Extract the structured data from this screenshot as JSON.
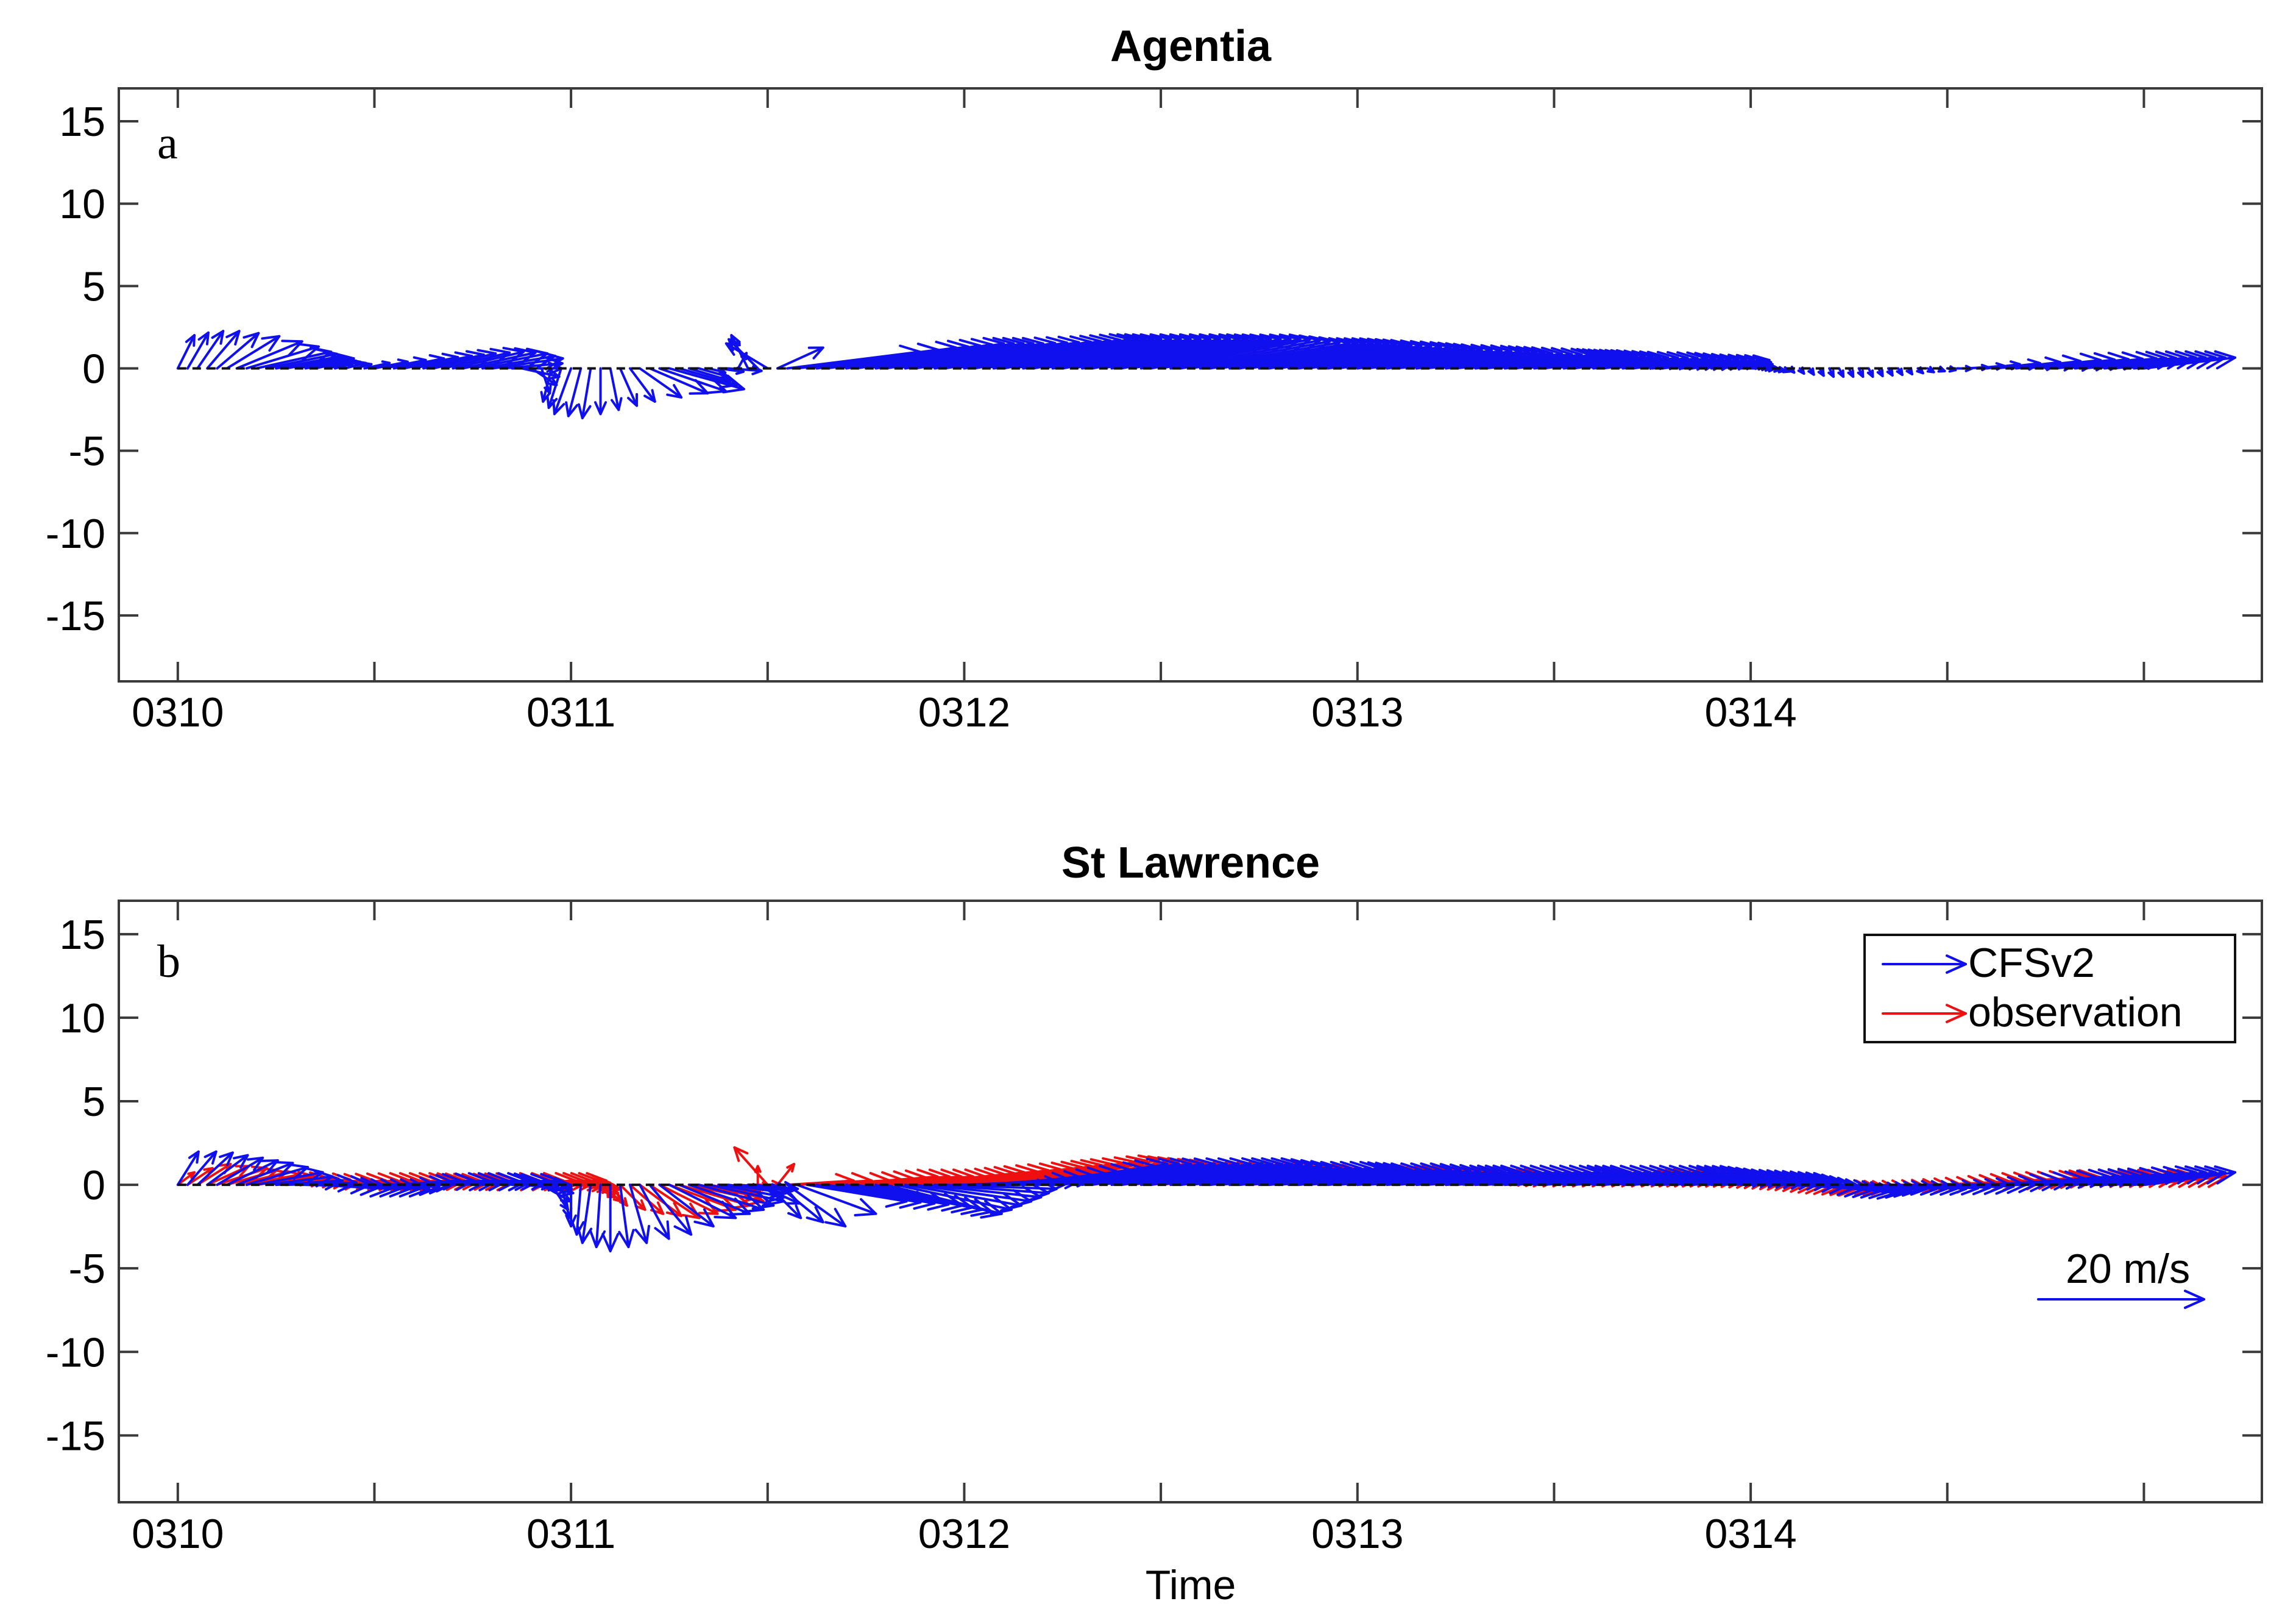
{
  "chart_data": [
    {
      "type": "quiver",
      "panel_label": "a",
      "title": "Agentia",
      "xlabel": "",
      "ylabel": "",
      "xlim": [
        -0.15,
        5.3
      ],
      "ylim": [
        -19,
        17
      ],
      "xticks": [
        0,
        0.5,
        1,
        1.5,
        2,
        2.5,
        3,
        3.5,
        4,
        4.5,
        5
      ],
      "xtick_labels": [
        "0310",
        "",
        "0311",
        "",
        "0312",
        "",
        "0313",
        "",
        "0314",
        "",
        ""
      ],
      "yticks": [
        15,
        10,
        5,
        0,
        -5,
        -10,
        -15
      ],
      "ytick_labels": [
        "15",
        "10",
        "5",
        "0",
        "-5",
        "-10",
        "-15"
      ],
      "arrow_scale": "20 m/s",
      "series": [
        {
          "name": "CFSv2",
          "color": "#1010ee",
          "keyframes": {
            "t": [
              0,
              0.04,
              0.08,
              0.12,
              0.16,
              0.2,
              0.25,
              0.3,
              0.35,
              0.4,
              0.45,
              0.5,
              0.55,
              0.6,
              0.65,
              0.7,
              0.75,
              0.8,
              0.85,
              0.9,
              0.95,
              1.0,
              1.05,
              1.1,
              1.15,
              1.2,
              1.25,
              1.3,
              1.35,
              1.4,
              1.45,
              1.5,
              1.55,
              1.6,
              1.7,
              1.8,
              1.9,
              2.0,
              2.1,
              2.2,
              2.3,
              2.4,
              2.5,
              2.6,
              2.7,
              2.8,
              2.9,
              3.0,
              3.1,
              3.2,
              3.3,
              3.4,
              3.5,
              3.6,
              3.7,
              3.8,
              3.9,
              4.0,
              4.1,
              4.2,
              4.3,
              4.4,
              4.5,
              4.6,
              4.7,
              4.8,
              4.9,
              5.0
            ],
            "u": [
              2.0,
              2.8,
              4.0,
              6.0,
              8.5,
              9.0,
              8.0,
              7.0,
              4.5,
              3.0,
              2.0,
              4.0,
              6.0,
              7.0,
              7.5,
              8.5,
              9.0,
              8.5,
              6.0,
              3.0,
              -1.0,
              -2.0,
              -1.0,
              1.0,
              3.0,
              7.0,
              9.0,
              5.0,
              2.0,
              4.0,
              -2.0,
              -5.0,
              16.0,
              18.0,
              19.0,
              19.0,
              20.0,
              20.0,
              19.0,
              19.0,
              19.0,
              18.0,
              18.0,
              18.0,
              17.0,
              16.0,
              16.0,
              15.0,
              15.0,
              14.0,
              14.0,
              12.0,
              10.0,
              9.0,
              9.0,
              8.0,
              7.0,
              3.0,
              0.5,
              0.5,
              0.5,
              0.5,
              1.0,
              4.0,
              9.0,
              11.0,
              11.0,
              11.0
            ],
            "v": [
              4.0,
              4.5,
              4.5,
              4.0,
              3.0,
              2.0,
              1.5,
              1.2,
              1.0,
              0.8,
              0.5,
              0.8,
              1.2,
              1.5,
              1.8,
              2.0,
              1.8,
              1.2,
              0.0,
              -2.0,
              -4.0,
              -5.5,
              -6.0,
              -5.0,
              -4.0,
              -3.0,
              -2.5,
              -1.5,
              -0.5,
              -0.3,
              4.0,
              3.0,
              2.0,
              2.5,
              3.0,
              3.0,
              3.2,
              3.5,
              3.5,
              3.5,
              3.5,
              3.5,
              3.5,
              3.0,
              3.0,
              2.8,
              2.5,
              2.2,
              2.0,
              1.8,
              1.6,
              1.5,
              1.5,
              1.3,
              1.2,
              1.0,
              1.0,
              0.0,
              -0.5,
              -1.0,
              -1.0,
              -0.7,
              -0.2,
              0.5,
              1.0,
              1.2,
              1.3,
              1.3
            ]
          }
        }
      ]
    },
    {
      "type": "quiver",
      "panel_label": "b",
      "title": "St Lawrence",
      "xlabel": "Time",
      "ylabel": "",
      "xlim": [
        -0.15,
        5.3
      ],
      "ylim": [
        -19,
        17
      ],
      "xticks": [
        0,
        0.5,
        1,
        1.5,
        2,
        2.5,
        3,
        3.5,
        4,
        4.5,
        5
      ],
      "xtick_labels": [
        "0310",
        "",
        "0311",
        "",
        "0312",
        "",
        "0313",
        "",
        "0314",
        "",
        ""
      ],
      "yticks": [
        15,
        10,
        5,
        0,
        -5,
        -10,
        -15
      ],
      "ytick_labels": [
        "15",
        "10",
        "5",
        "0",
        "-5",
        "-10",
        "-15"
      ],
      "legend": {
        "position": "top-right",
        "entries": [
          "CFSv2",
          "observation"
        ]
      },
      "scale_annotation": {
        "label": "20 m/s",
        "speed": 20
      },
      "series": [
        {
          "name": "observation",
          "color": "#ee1010",
          "keyframes": {
            "t": [
              0,
              0.05,
              0.1,
              0.15,
              0.2,
              0.3,
              0.4,
              0.5,
              0.6,
              0.7,
              0.8,
              0.9,
              1.0,
              1.05,
              1.1,
              1.15,
              1.2,
              1.25,
              1.3,
              1.35,
              1.4,
              1.45,
              1.5,
              1.55,
              1.6,
              1.7,
              1.8,
              1.9,
              2.0,
              2.1,
              2.2,
              2.3,
              2.4,
              2.5,
              2.6,
              2.7,
              2.8,
              2.9,
              3.0,
              3.1,
              3.2,
              3.3,
              3.4,
              3.5,
              3.6,
              3.7,
              3.8,
              3.9,
              4.0,
              4.1,
              4.2,
              4.3,
              4.4,
              4.5,
              4.6,
              4.7,
              4.8,
              4.9,
              5.0
            ],
            "u": [
              2.0,
              4.0,
              6.0,
              6.0,
              7.0,
              8.0,
              9.0,
              9.0,
              8.0,
              9.0,
              10.0,
              9.0,
              6.0,
              3.0,
              2.0,
              4.0,
              6.0,
              8.0,
              9.0,
              6.0,
              4.0,
              4.0,
              -4.0,
              8.0,
              10.0,
              11.0,
              12.0,
              12.0,
              13.0,
              13.0,
              14.0,
              14.0,
              15.0,
              16.0,
              16.0,
              16.0,
              16.0,
              15.0,
              15.0,
              15.0,
              14.0,
              14.0,
              14.0,
              14.0,
              13.0,
              12.0,
              11.0,
              10.0,
              9.0,
              8.0,
              7.0,
              7.0,
              8.0,
              9.0,
              10.0,
              10.0,
              10.0,
              10.0,
              10.0
            ],
            "v": [
              1.5,
              2.5,
              2.0,
              1.5,
              1.0,
              0.5,
              0.5,
              0.5,
              0.5,
              0.5,
              0.5,
              0.5,
              -0.5,
              -1.5,
              -2.5,
              -3.5,
              -4.0,
              -3.0,
              -2.0,
              -1.0,
              -0.5,
              0.0,
              4.5,
              0.5,
              0.5,
              1.0,
              1.0,
              1.5,
              2.0,
              2.5,
              3.0,
              2.5,
              2.0,
              2.0,
              1.8,
              1.5,
              1.5,
              1.5,
              1.2,
              1.2,
              1.0,
              1.0,
              1.0,
              1.0,
              1.0,
              1.0,
              0.8,
              0.5,
              0.0,
              -0.5,
              -0.5,
              -0.3,
              0.0,
              0.5,
              0.8,
              1.0,
              1.0,
              1.0,
              1.0
            ]
          }
        },
        {
          "name": "CFSv2",
          "color": "#1010ee",
          "keyframes": {
            "t": [
              0,
              0.04,
              0.08,
              0.12,
              0.16,
              0.2,
              0.25,
              0.3,
              0.35,
              0.4,
              0.45,
              0.5,
              0.55,
              0.6,
              0.65,
              0.7,
              0.75,
              0.8,
              0.85,
              0.9,
              0.95,
              1.0,
              1.05,
              1.1,
              1.15,
              1.2,
              1.25,
              1.3,
              1.35,
              1.4,
              1.45,
              1.5,
              1.55,
              1.6,
              1.7,
              1.8,
              1.9,
              2.0,
              2.1,
              2.2,
              2.3,
              2.4,
              2.5,
              2.6,
              2.7,
              2.8,
              2.9,
              3.0,
              3.1,
              3.2,
              3.3,
              3.4,
              3.5,
              3.6,
              3.7,
              3.8,
              3.9,
              4.0,
              4.1,
              4.2,
              4.3,
              4.4,
              4.5,
              4.6,
              4.7,
              4.8,
              4.9,
              5.0
            ],
            "u": [
              2.5,
              4.0,
              5.0,
              6.0,
              7.0,
              8.0,
              8.0,
              9.0,
              9.0,
              9.0,
              9.0,
              9.0,
              8.0,
              9.0,
              9.0,
              9.0,
              8.0,
              8.0,
              7.0,
              5.0,
              2.0,
              0.0,
              -1.0,
              0.0,
              2.0,
              5.0,
              8.0,
              9.0,
              9.0,
              7.0,
              6.0,
              4.0,
              7.0,
              12.0,
              14.0,
              14.0,
              14.0,
              13.0,
              14.0,
              15.0,
              16.0,
              17.0,
              17.0,
              17.0,
              17.0,
              16.0,
              16.0,
              16.0,
              15.0,
              15.0,
              15.0,
              14.0,
              14.0,
              14.0,
              13.0,
              12.0,
              11.0,
              10.0,
              9.0,
              8.0,
              7.0,
              7.0,
              8.0,
              9.0,
              10.0,
              10.0,
              11.0,
              11.0
            ],
            "v": [
              4.0,
              4.0,
              3.5,
              3.0,
              2.5,
              1.5,
              0.5,
              0.0,
              -0.5,
              -0.5,
              -0.5,
              0.0,
              0.5,
              0.5,
              0.5,
              0.5,
              0.5,
              0.5,
              0.0,
              -1.0,
              -3.0,
              -5.0,
              -7.0,
              -8.0,
              -7.0,
              -6.0,
              -4.0,
              -3.0,
              -2.0,
              -1.0,
              -0.5,
              -4.0,
              -5.0,
              -2.0,
              -2.5,
              -3.5,
              -1.5,
              0.5,
              1.5,
              2.5,
              2.5,
              2.5,
              2.5,
              2.0,
              2.0,
              1.8,
              1.8,
              1.5,
              1.5,
              1.5,
              1.5,
              1.5,
              1.5,
              1.5,
              1.5,
              1.0,
              0.8,
              0.5,
              -0.5,
              -1.0,
              -0.5,
              -0.5,
              -0.2,
              0.5,
              1.0,
              1.2,
              1.5,
              1.5
            ]
          }
        }
      ]
    }
  ]
}
